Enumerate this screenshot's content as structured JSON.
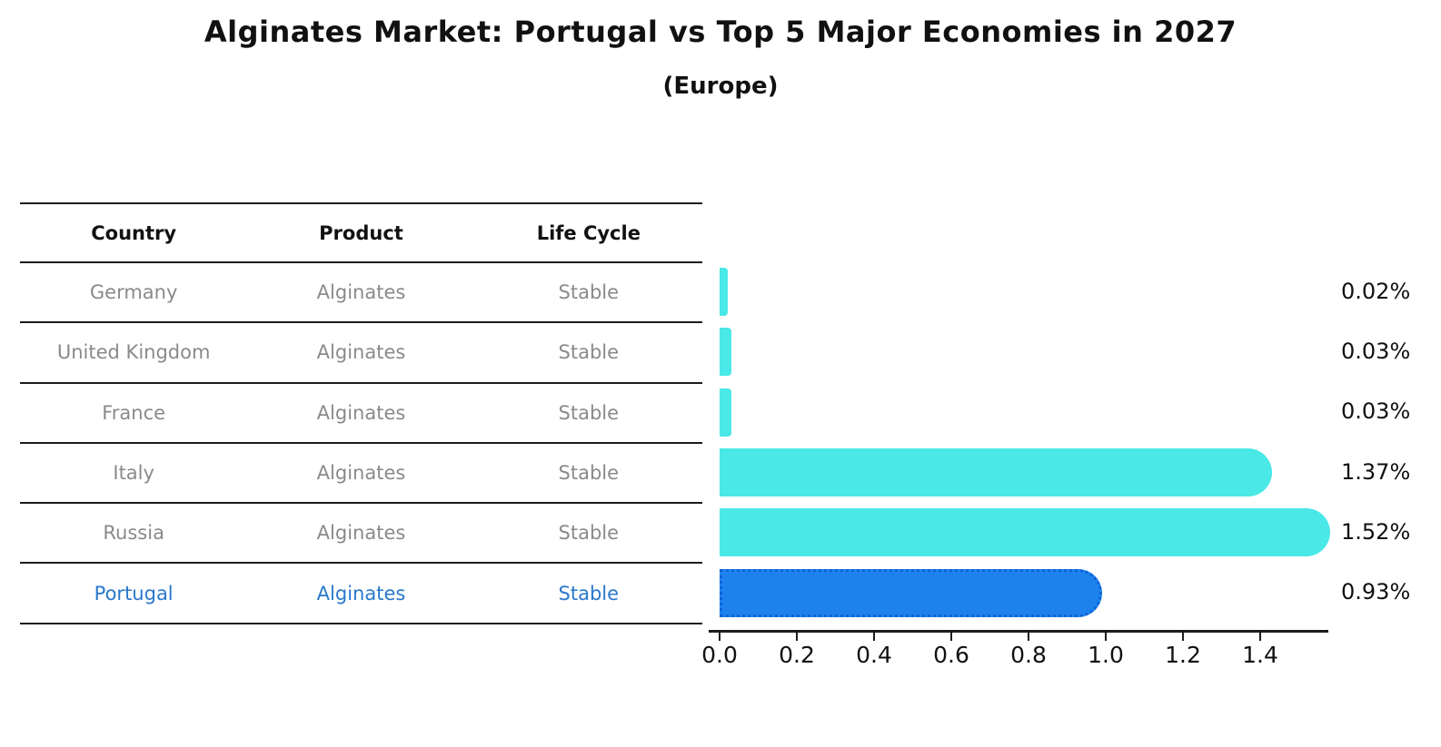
{
  "title": "Alginates Market: Portugal vs Top 5 Major Economies in 2027",
  "subtitle": "(Europe)",
  "table": {
    "headers": [
      "Country",
      "Product",
      "Life Cycle"
    ],
    "rows": [
      {
        "country": "Germany",
        "product": "Alginates",
        "life_cycle": "Stable",
        "highlight": false
      },
      {
        "country": "United Kingdom",
        "product": "Alginates",
        "life_cycle": "Stable",
        "highlight": false
      },
      {
        "country": "France",
        "product": "Alginates",
        "life_cycle": "Stable",
        "highlight": false
      },
      {
        "country": "Italy",
        "product": "Alginates",
        "life_cycle": "Stable",
        "highlight": false
      },
      {
        "country": "Russia",
        "product": "Alginates",
        "life_cycle": "Stable",
        "highlight": false
      },
      {
        "country": "Portugal",
        "product": "Alginates",
        "life_cycle": "Stable",
        "highlight": true
      }
    ]
  },
  "chart_data": {
    "type": "bar",
    "orientation": "horizontal",
    "title": "Alginates Market: Portugal vs Top 5 Major Economies in 2027",
    "subtitle": "(Europe)",
    "categories": [
      "Germany",
      "United Kingdom",
      "France",
      "Italy",
      "Russia",
      "Portugal"
    ],
    "values": [
      0.02,
      0.03,
      0.03,
      1.37,
      1.52,
      0.93
    ],
    "value_labels": [
      "0.02%",
      "0.03%",
      "0.03%",
      "1.37%",
      "1.52%",
      "0.93%"
    ],
    "highlight_index": 5,
    "xlim": [
      0.0,
      1.58
    ],
    "x_ticks": [
      "0.0",
      "0.2",
      "0.4",
      "0.6",
      "0.8",
      "1.0",
      "1.2",
      "1.4"
    ],
    "x_tick_values": [
      0.0,
      0.2,
      0.4,
      0.6,
      0.8,
      1.0,
      1.2,
      1.4
    ],
    "grid": false,
    "legend": false,
    "bar_color": "#4ae8e6",
    "highlight_bar_color": "#1e82ec",
    "highlight_border_color": "#0e63d8",
    "highlight_text_color": "#2878cc",
    "table_text_color": "#8a8a8a"
  }
}
